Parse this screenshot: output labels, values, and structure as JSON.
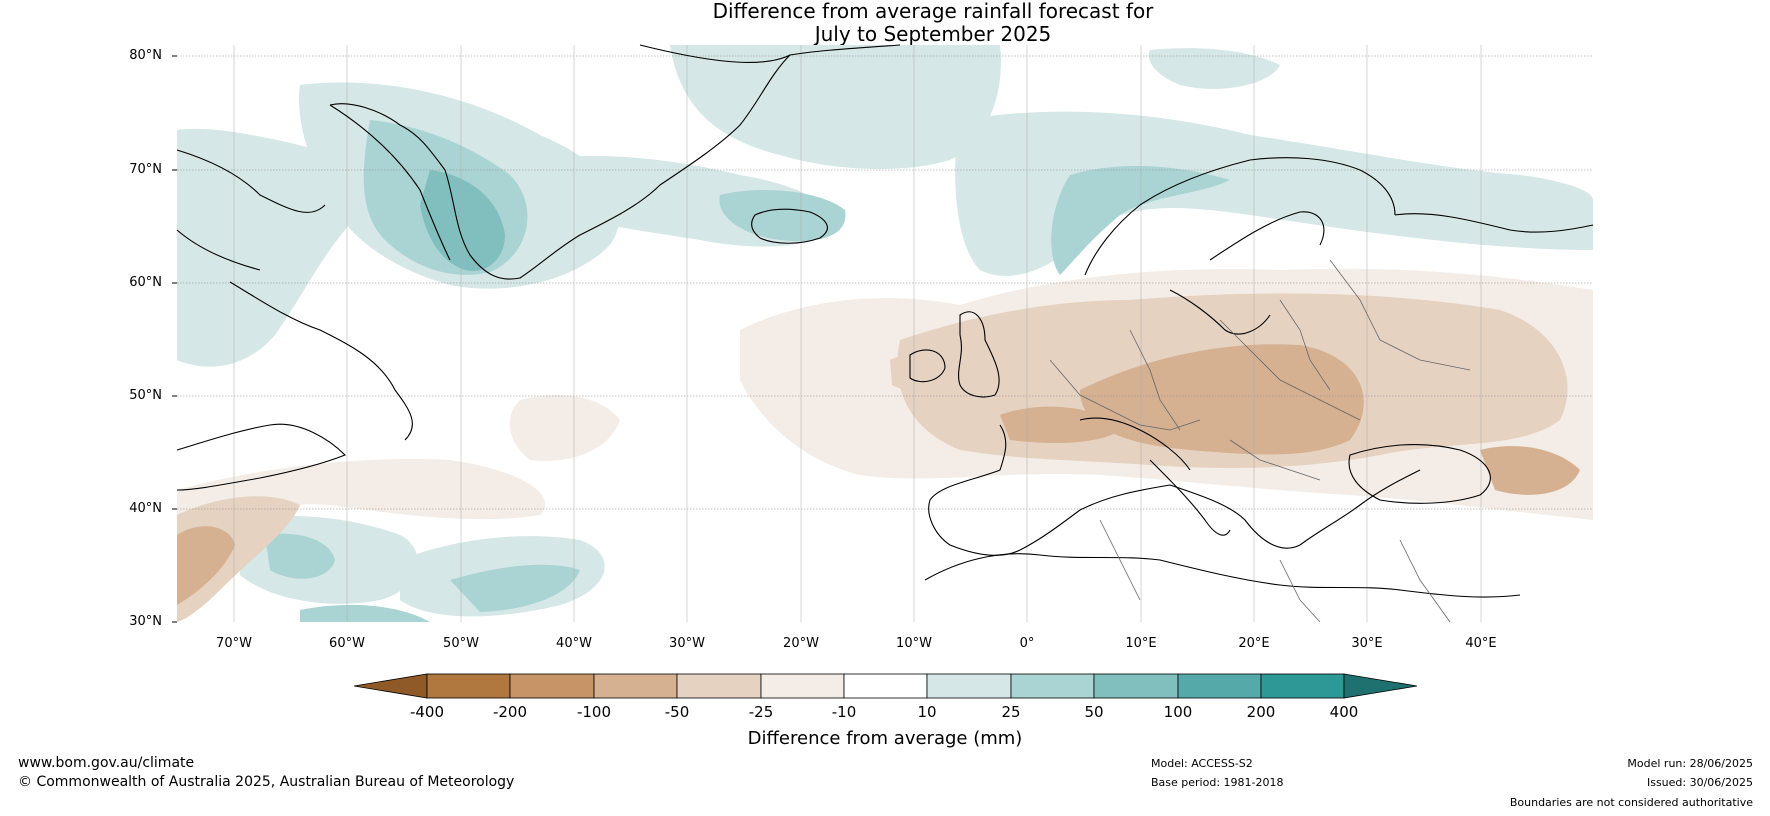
{
  "title_line1": "Difference from average rainfall forecast for",
  "title_line2": "July to September 2025",
  "latitude_labels": [
    "80°N",
    "70°N",
    "60°N",
    "50°N",
    "40°N",
    "30°N"
  ],
  "longitude_labels": [
    "70°W",
    "60°W",
    "50°W",
    "40°W",
    "30°W",
    "20°W",
    "10°W",
    "0°",
    "10°E",
    "20°E",
    "30°E",
    "40°E"
  ],
  "colorbar": {
    "ticks": [
      "-400",
      "-200",
      "-100",
      "-50",
      "-25",
      "-10",
      "10",
      "25",
      "50",
      "100",
      "200",
      "400"
    ],
    "colors": {
      "below_400": "#8f5a28",
      "-400_-200": "#b0773f",
      "-200_-100": "#c69467",
      "-100_-50": "#d5b192",
      "-50_-25": "#e6d2c1",
      "-25_-10": "#f4ece6",
      "-10_10": "#ffffff",
      "10_25": "#d5e7e6",
      "25_50": "#aad4d3",
      "50_100": "#80bfbe",
      "100_200": "#55aaa9",
      "200_400": "#2d9896",
      "above_400": "#1f7170"
    },
    "label": "Difference from average (mm)"
  },
  "footer": {
    "website": "www.bom.gov.au/climate",
    "copyright": "© Commonwealth of Australia 2025, Australian Bureau of Meteorology",
    "model": "Model: ACCESS-S2",
    "base_period": "Base period: 1981-2018",
    "model_run": "Model run: 28/06/2025",
    "issued": "Issued: 30/06/2025",
    "disclaimer": "Boundaries are not considered authoritative"
  }
}
